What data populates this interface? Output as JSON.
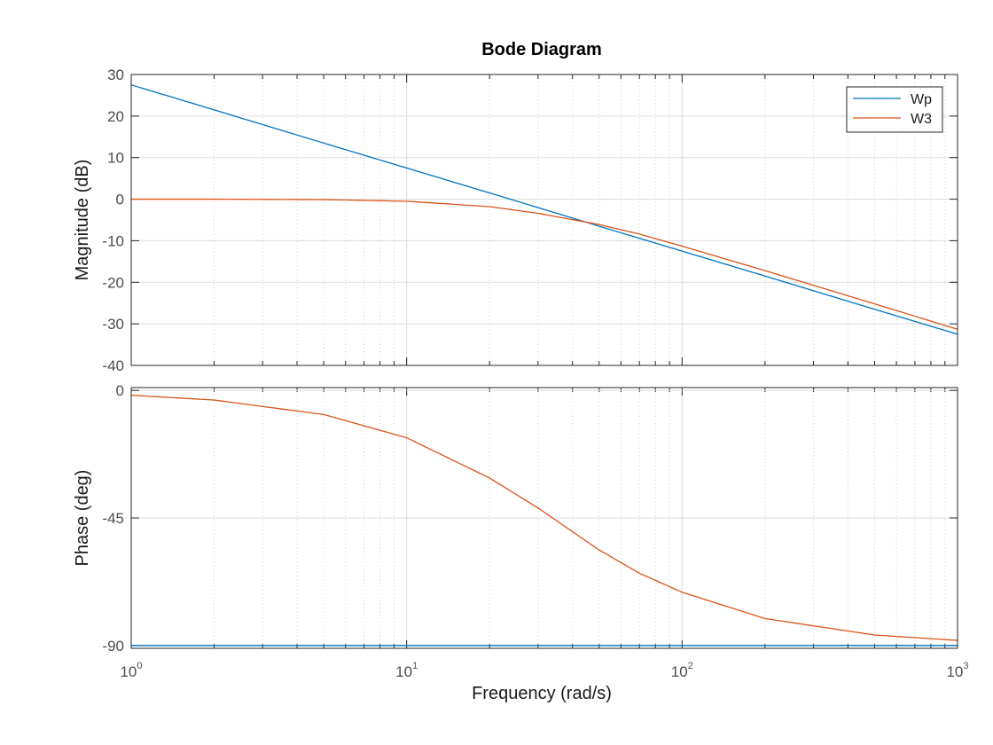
{
  "chart_data": {
    "type": "line",
    "title": "Bode Diagram",
    "xlabel": "Frequency  (rad/s)",
    "xscale": "log",
    "xlim": [
      1,
      1000
    ],
    "x_tick_labels": [
      {
        "base": "10",
        "exp": "0",
        "value": 1
      },
      {
        "base": "10",
        "exp": "1",
        "value": 10
      },
      {
        "base": "10",
        "exp": "2",
        "value": 100
      },
      {
        "base": "10",
        "exp": "3",
        "value": 1000
      }
    ],
    "grid": true,
    "legend": {
      "placement": "top-right",
      "entries": [
        "Wp",
        "W3"
      ]
    },
    "colors": {
      "Wp": "#0072bd",
      "W3": "#d95319"
    },
    "panels": [
      {
        "id": "magnitude",
        "ylabel": "Magnitude (dB)",
        "ylim": [
          -40,
          30
        ],
        "yticks": [
          30,
          20,
          10,
          0,
          -10,
          -20,
          -30,
          -40
        ],
        "series": [
          {
            "name": "Wp",
            "x": [
              1,
              2,
              5,
              10,
              20,
              50,
              100,
              200,
              500,
              1000
            ],
            "values": [
              27.5,
              21.5,
              13.5,
              7.5,
              1.5,
              -6.5,
              -12.5,
              -18.5,
              -26.5,
              -32.5
            ]
          },
          {
            "name": "W3",
            "x": [
              1,
              2,
              5,
              10,
              20,
              30,
              50,
              70,
              100,
              200,
              500,
              1000
            ],
            "values": [
              0.0,
              0.0,
              -0.1,
              -0.5,
              -1.8,
              -3.4,
              -6.1,
              -8.4,
              -11.3,
              -17.2,
              -25.2,
              -31.3
            ]
          }
        ]
      },
      {
        "id": "phase",
        "ylabel": "Phase (deg)",
        "ylim": [
          -91,
          1
        ],
        "yticks": [
          0,
          -45,
          -90
        ],
        "series": [
          {
            "name": "Wp",
            "x": [
              1,
              1000
            ],
            "values": [
              -90,
              -90
            ]
          },
          {
            "name": "W3",
            "x": [
              1,
              2,
              5,
              10,
              20,
              30,
              50,
              70,
              100,
              200,
              500,
              1000
            ],
            "values": [
              -1.7,
              -3.4,
              -8.5,
              -16.7,
              -30.9,
              -41.5,
              -56.3,
              -64.5,
              -71.2,
              -80.5,
              -86.3,
              -88.2
            ]
          }
        ]
      }
    ]
  }
}
